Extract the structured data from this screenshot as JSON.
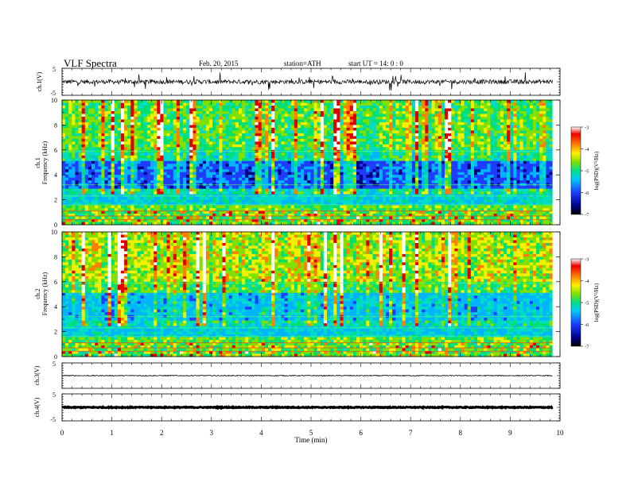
{
  "header": {
    "title": "VLF  Spectra",
    "date": "Feb. 20, 2015",
    "station": "station=ATH",
    "start": "start  UT  =   14: 0  : 0"
  },
  "chart_data": [
    {
      "type": "line",
      "panel": "ch1_waveform",
      "ylabel": "ch.1(V)",
      "ylim": [
        -5,
        5
      ],
      "yticks": [
        "5",
        "-5"
      ],
      "xlim": [
        0,
        10
      ],
      "series": [
        {
          "color": "#000000",
          "baseline": 0,
          "x_end": 9.85
        }
      ]
    },
    {
      "type": "heatmap",
      "panel": "ch1_spectrogram",
      "ylabel": "Frequency  (kHz)",
      "channel_label": "ch.1",
      "ylim": [
        0,
        10
      ],
      "yticks": [
        "0",
        "2",
        "4",
        "6",
        "8",
        "10"
      ],
      "xlim": [
        0,
        10
      ],
      "x_end": 9.85,
      "colorbar": {
        "label": "log(PSD)(V²/Hz)",
        "range": [
          -7,
          -3
        ],
        "ticks": [
          "-3",
          "-4",
          "-5",
          "-6",
          "-7"
        ]
      }
    },
    {
      "type": "heatmap",
      "panel": "ch2_spectrogram",
      "ylabel": "Frequency  (kHz)",
      "channel_label": "ch.2",
      "ylim": [
        0,
        10
      ],
      "yticks": [
        "0",
        "2",
        "4",
        "6",
        "8",
        "10"
      ],
      "xlim": [
        0,
        10
      ],
      "x_end": 9.85,
      "colorbar": {
        "label": "log(PSD)(V²/Hz)",
        "range": [
          -7,
          -3
        ],
        "ticks": [
          "-3",
          "-4",
          "-5",
          "-6",
          "-7"
        ]
      }
    },
    {
      "type": "line",
      "panel": "ch3_waveform",
      "ylabel": "ch.3(V)",
      "ylim": [
        -5,
        5
      ],
      "yticks": [
        "5"
      ],
      "xlim": [
        0,
        10
      ],
      "series": [
        {
          "color": "#000000",
          "baseline": 0,
          "x_end": 9.85
        }
      ]
    },
    {
      "type": "line",
      "panel": "ch4_waveform",
      "ylabel": "ch.4(V)",
      "ylim": [
        -5,
        5
      ],
      "yticks": [
        "5",
        "-5"
      ],
      "xlim": [
        0,
        10
      ],
      "xlabel": "Time  (min)",
      "xticks": [
        "0",
        "1",
        "2",
        "3",
        "4",
        "5",
        "6",
        "7",
        "8",
        "9",
        "10"
      ],
      "series": [
        {
          "color": "#000000",
          "baseline": 0,
          "x_end": 9.85
        }
      ]
    }
  ]
}
